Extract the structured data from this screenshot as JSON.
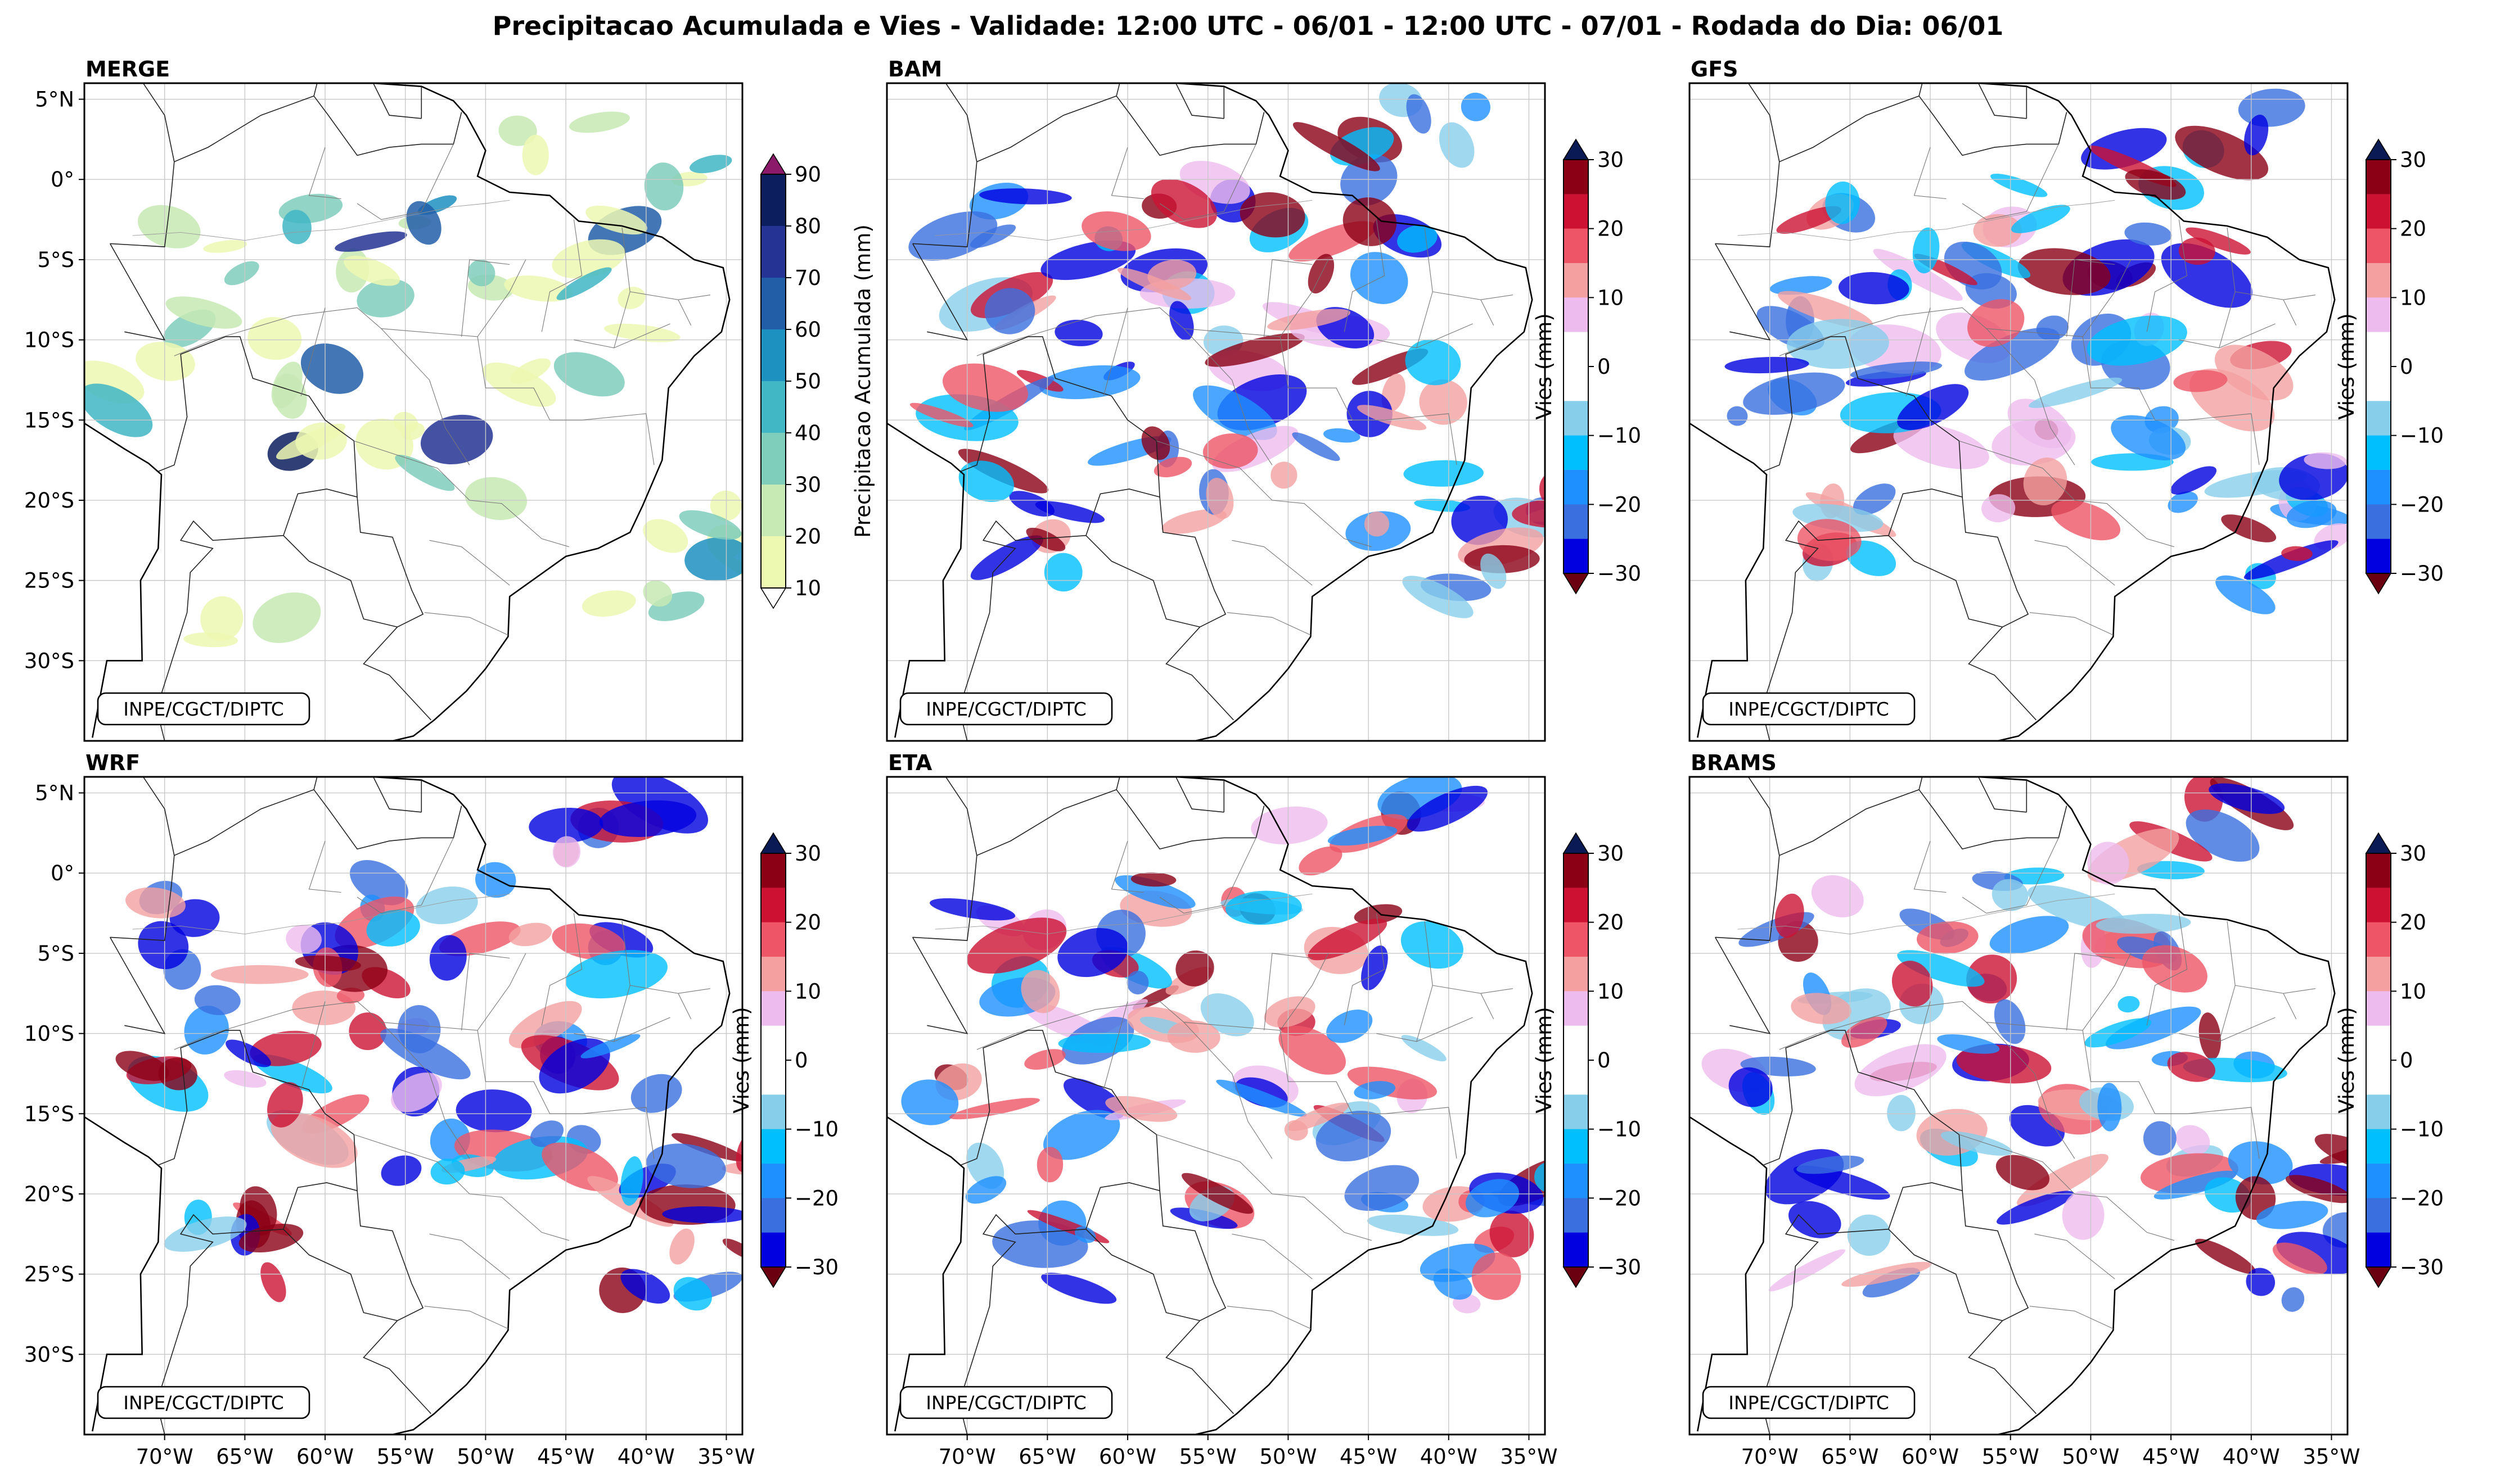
{
  "figure": {
    "title": "Precipitacao Acumulada e Vies - Validade: 12:00 UTC - 06/01 - 12:00 UTC - 07/01 - Rodada do Dia: 06/01",
    "credit": "INPE/CGCT/DIPTC"
  },
  "axes": {
    "lon_labels": [
      "70°W",
      "65°W",
      "60°W",
      "55°W",
      "50°W",
      "45°W",
      "40°W",
      "35°W"
    ],
    "lat_labels": [
      "5°N",
      "0°",
      "5°S",
      "10°S",
      "15°S",
      "20°S",
      "25°S",
      "30°S"
    ]
  },
  "panels": [
    {
      "id": "merge",
      "label": "MERGE",
      "kind": "precip"
    },
    {
      "id": "bam",
      "label": "BAM",
      "kind": "bias"
    },
    {
      "id": "gfs",
      "label": "GFS",
      "kind": "bias"
    },
    {
      "id": "wrf",
      "label": "WRF",
      "kind": "bias"
    },
    {
      "id": "eta",
      "label": "ETA",
      "kind": "bias"
    },
    {
      "id": "brams",
      "label": "BRAMS",
      "kind": "bias"
    }
  ],
  "colorbars": {
    "precip": {
      "label": "Precipitacao Acumulada (mm)",
      "ticks": [
        "10",
        "20",
        "30",
        "40",
        "50",
        "60",
        "70",
        "80",
        "90"
      ],
      "colors": [
        "#edf8b1",
        "#c7e9b4",
        "#7fcdbb",
        "#41b6c4",
        "#1d91c0",
        "#225ea8",
        "#253494",
        "#0c1e5e"
      ],
      "over": "#8b1a6b",
      "under": "#ffffff"
    },
    "bias": {
      "label": "Vies (mm)",
      "ticks": [
        "30",
        "20",
        "10",
        "0",
        "−10",
        "−20",
        "−30"
      ],
      "colors": [
        "#0000e0",
        "#3a6fe0",
        "#1e90ff",
        "#00bfff",
        "#87ceeb",
        "#ffffff",
        "#ffffff",
        "#eebbee",
        "#f4a0a0",
        "#ee5566",
        "#cc1133",
        "#8b0015"
      ],
      "over": "#0a1a55",
      "under": "#6b0010"
    }
  }
}
